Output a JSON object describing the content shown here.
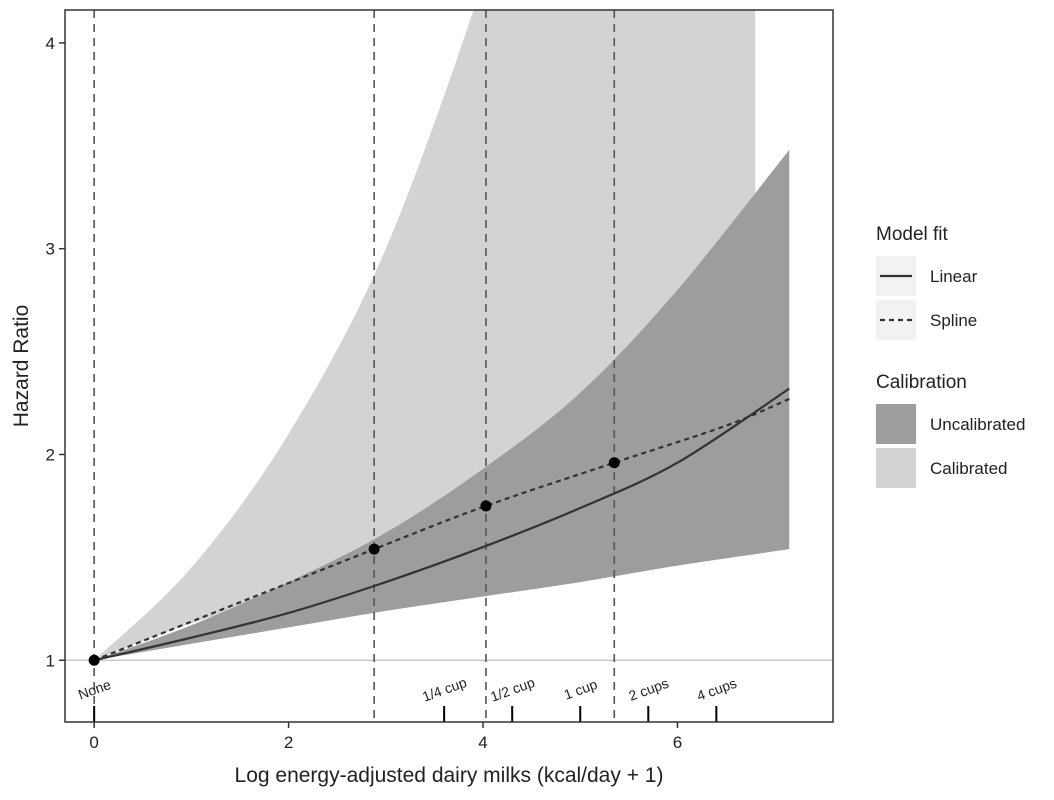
{
  "chart_data": {
    "type": "line",
    "xlabel": "Log energy-adjusted dairy milks (kcal/day + 1)",
    "ylabel": "Hazard Ratio",
    "xlim": [
      -0.3,
      7.6
    ],
    "ylim": [
      0.7,
      4.16
    ],
    "x_ticks": [
      0,
      2,
      4,
      6
    ],
    "y_ticks": [
      1,
      2,
      3,
      4
    ],
    "x_tick_labels": [
      "0",
      "2",
      "4",
      "6"
    ],
    "y_tick_labels": [
      "1",
      "2",
      "3",
      "4"
    ],
    "reference_line": 1,
    "vertical_dashed_lines": [
      0,
      2.88,
      4.03,
      5.35
    ],
    "rug_marks": [
      {
        "x": 0,
        "label": "None"
      },
      {
        "x": 3.6,
        "label": "1/4 cup"
      },
      {
        "x": 4.3,
        "label": "1/2 cup"
      },
      {
        "x": 5.0,
        "label": "1 cup"
      },
      {
        "x": 5.7,
        "label": "2 cups"
      },
      {
        "x": 6.4,
        "label": "4 cups"
      }
    ],
    "series": [
      {
        "name": "Linear",
        "style": "solid",
        "x": [
          0,
          1,
          2,
          3,
          4,
          5,
          6,
          7.15
        ],
        "y": [
          1.0,
          1.11,
          1.23,
          1.38,
          1.55,
          1.74,
          1.96,
          2.32
        ]
      },
      {
        "name": "Spline",
        "style": "dashed",
        "x": [
          0,
          2.88,
          4.03,
          5.35,
          6.5,
          7.15
        ],
        "y": [
          1.0,
          1.54,
          1.75,
          1.96,
          2.14,
          2.27
        ]
      }
    ],
    "points": [
      {
        "x": 0,
        "y": 1.0
      },
      {
        "x": 2.88,
        "y": 1.54
      },
      {
        "x": 4.03,
        "y": 1.75
      },
      {
        "x": 5.35,
        "y": 1.96
      }
    ],
    "bands": [
      {
        "name": "Calibrated",
        "color": "#d3d3d3",
        "x": [
          0,
          1,
          2,
          3,
          4,
          4.3,
          5,
          6,
          6.8
        ],
        "upper": [
          1.0,
          1.45,
          2.1,
          3.0,
          4.3,
          4.9,
          6.5,
          8.5,
          9.5
        ],
        "lower": [
          1.0,
          1.18,
          1.32,
          1.5,
          1.68,
          1.73,
          1.85,
          1.98,
          2.08
        ]
      },
      {
        "name": "Uncalibrated",
        "color": "#9d9d9d",
        "x": [
          0,
          1,
          2,
          3,
          4,
          5,
          6,
          7.15
        ],
        "upper": [
          1.0,
          1.17,
          1.38,
          1.62,
          1.93,
          2.3,
          2.8,
          3.48
        ],
        "lower": [
          1.0,
          1.08,
          1.16,
          1.24,
          1.31,
          1.38,
          1.46,
          1.54
        ]
      }
    ],
    "legend": {
      "placement": "right",
      "groups": [
        {
          "title": "Model fit",
          "items": [
            {
              "label": "Linear",
              "kind": "line",
              "dash": false
            },
            {
              "label": "Spline",
              "kind": "line",
              "dash": true
            }
          ]
        },
        {
          "title": "Calibration",
          "items": [
            {
              "label": "Uncalibrated",
              "kind": "fill",
              "color": "#9d9d9d"
            },
            {
              "label": "Calibrated",
              "kind": "fill",
              "color": "#d3d3d3"
            }
          ]
        }
      ]
    },
    "grid": false
  }
}
